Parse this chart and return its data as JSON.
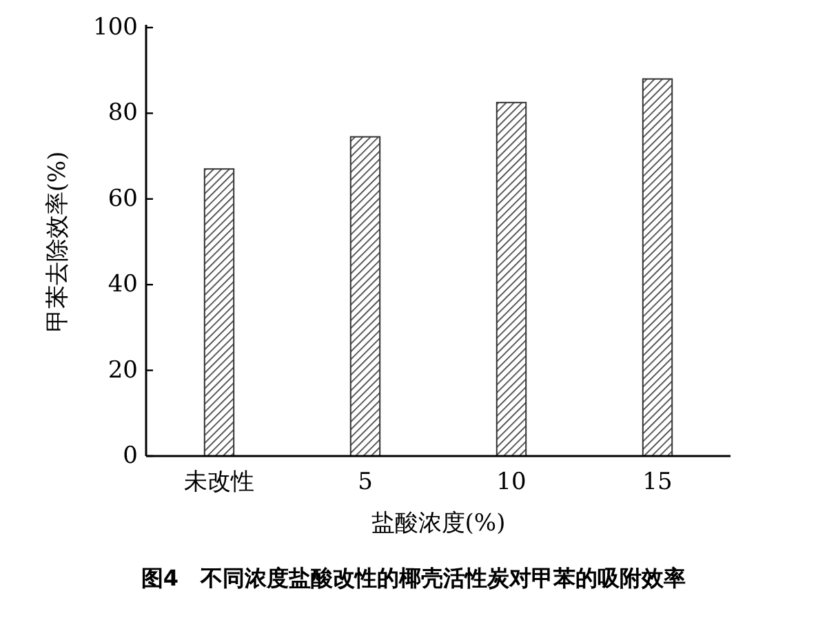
{
  "chart_data": {
    "type": "bar",
    "xlabel": "盐酸浓度(%)",
    "ylabel": "甲苯去除效率(%)",
    "categories": [
      "未改性",
      "5",
      "10",
      "15"
    ],
    "values": [
      67,
      74.5,
      82.5,
      88
    ],
    "color": "#333333",
    "ylim": [
      0,
      100
    ],
    "yticks": [
      0,
      20,
      40,
      60,
      80,
      100
    ],
    "annotations": [
      "图4　不同浓度盐酸改性的椰壳活性炭对甲苯的吸附效率"
    ]
  }
}
